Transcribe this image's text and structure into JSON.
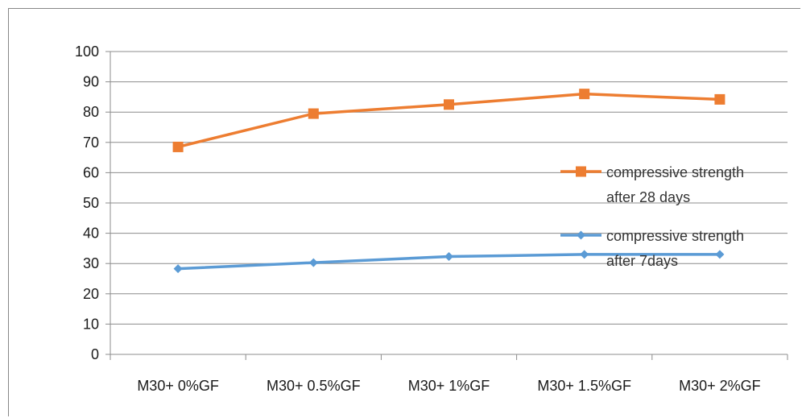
{
  "chart_data": {
    "type": "line",
    "categories": [
      "M30+ 0%GF",
      "M30+ 0.5%GF",
      "M30+ 1%GF",
      "M30+ 1.5%GF",
      "M30+ 2%GF"
    ],
    "series": [
      {
        "name": "compressive strength after 28 days",
        "name_lines": [
          "compressive strength",
          "after 28 days"
        ],
        "values": [
          68.5,
          79.5,
          82.5,
          86,
          84.2
        ],
        "color": "#ED7D31",
        "marker": "square"
      },
      {
        "name": "compressive strength after 7days",
        "name_lines": [
          "compressive strength",
          "after 7days"
        ],
        "values": [
          28.3,
          30.3,
          32.3,
          33.0,
          33.0
        ],
        "color": "#5B9BD5",
        "marker": "diamond"
      }
    ],
    "ylim": [
      0,
      100
    ],
    "yticks": [
      0,
      10,
      20,
      30,
      40,
      50,
      60,
      70,
      80,
      90,
      100
    ],
    "grid": true,
    "legend_position": "right",
    "title": "",
    "xlabel": "",
    "ylabel": ""
  }
}
